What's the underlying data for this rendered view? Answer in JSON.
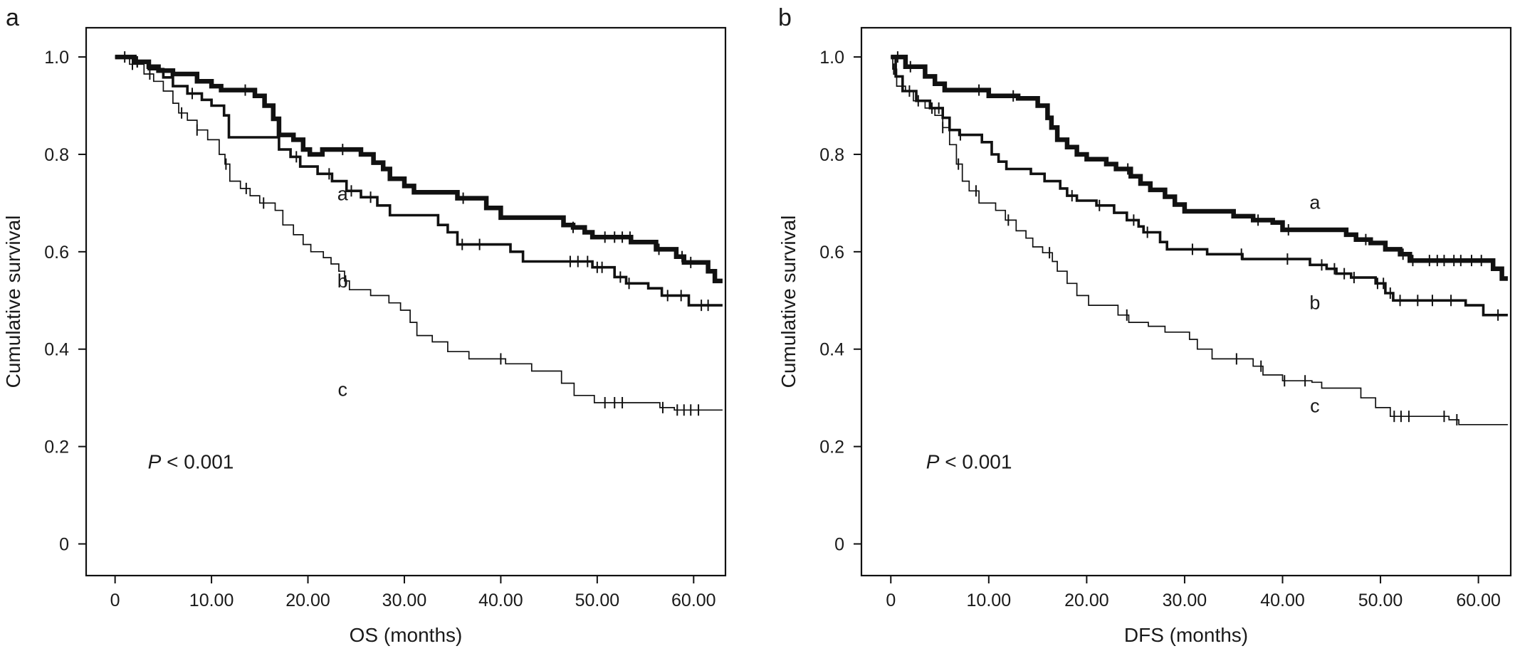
{
  "chart_data": [
    {
      "type": "line",
      "panel_label": "a",
      "xlabel": "OS (months)",
      "ylabel": "Cumulative survival",
      "xlim": [
        -3,
        63.3
      ],
      "ylim": [
        -0.065,
        1.06
      ],
      "x_ticks": [
        0,
        10,
        20,
        30,
        40,
        50,
        60
      ],
      "x_tick_labels": [
        "0",
        "10.00",
        "20.00",
        "30.00",
        "40.00",
        "50.00",
        "60.00"
      ],
      "y_ticks": [
        0,
        0.2,
        0.4,
        0.6,
        0.8,
        1.0
      ],
      "y_tick_labels": [
        "0",
        "0.2",
        "0.4",
        "0.6",
        "0.8",
        "1.0"
      ],
      "annotation": {
        "italic": "P",
        "rest": " < 0.001",
        "x": 3.4,
        "y": 0.155
      },
      "grid": false,
      "series": [
        {
          "name": "a",
          "weight": "heavy",
          "label_at": [
            23.6,
            0.706
          ],
          "steps": [
            [
              0,
              1.0
            ],
            [
              2,
              0.99
            ],
            [
              3.5,
              0.98
            ],
            [
              4.5,
              0.972
            ],
            [
              6,
              0.965
            ],
            [
              8.5,
              0.95
            ],
            [
              10,
              0.94
            ],
            [
              11,
              0.932
            ],
            [
              14.5,
              0.92
            ],
            [
              15.5,
              0.9
            ],
            [
              16.4,
              0.873
            ],
            [
              17,
              0.84
            ],
            [
              18.5,
              0.83
            ],
            [
              19.5,
              0.81
            ],
            [
              20.2,
              0.8
            ],
            [
              21.5,
              0.81
            ],
            [
              25.5,
              0.8
            ],
            [
              26.8,
              0.783
            ],
            [
              27.8,
              0.77
            ],
            [
              28.5,
              0.75
            ],
            [
              30,
              0.735
            ],
            [
              31,
              0.722
            ],
            [
              35.5,
              0.71
            ],
            [
              38.5,
              0.69
            ],
            [
              40,
              0.67
            ],
            [
              46.5,
              0.655
            ],
            [
              47.5,
              0.65
            ],
            [
              48.7,
              0.64
            ],
            [
              49.5,
              0.63
            ],
            [
              53.5,
              0.62
            ],
            [
              56.1,
              0.605
            ],
            [
              58.2,
              0.59
            ],
            [
              59,
              0.578
            ],
            [
              61.5,
              0.56
            ],
            [
              62.2,
              0.54
            ]
          ],
          "end_x": 63,
          "censor_x": [
            1,
            2.3,
            13.5,
            23.6,
            36.1,
            47.5,
            50.8,
            51.8,
            52.6,
            53.4,
            56.4,
            58.8,
            59.7
          ]
        },
        {
          "name": "b",
          "weight": "medium",
          "label_at": [
            23.6,
            0.527
          ],
          "steps": [
            [
              0,
              1.0
            ],
            [
              2,
              0.99
            ],
            [
              3.5,
              0.975
            ],
            [
              5,
              0.958
            ],
            [
              6,
              0.94
            ],
            [
              7.5,
              0.925
            ],
            [
              9,
              0.912
            ],
            [
              10,
              0.9
            ],
            [
              11.3,
              0.88
            ],
            [
              11.8,
              0.835
            ],
            [
              17,
              0.81
            ],
            [
              18.2,
              0.795
            ],
            [
              19.2,
              0.775
            ],
            [
              21,
              0.76
            ],
            [
              22.5,
              0.745
            ],
            [
              24,
              0.725
            ],
            [
              25.5,
              0.712
            ],
            [
              27.2,
              0.695
            ],
            [
              28.5,
              0.675
            ],
            [
              33.5,
              0.655
            ],
            [
              34.5,
              0.64
            ],
            [
              35.5,
              0.615
            ],
            [
              41,
              0.6
            ],
            [
              42.3,
              0.58
            ],
            [
              49.5,
              0.568
            ],
            [
              51.8,
              0.548
            ],
            [
              53,
              0.535
            ],
            [
              55.3,
              0.525
            ],
            [
              56.7,
              0.51
            ],
            [
              59.5,
              0.49
            ]
          ],
          "end_x": 63,
          "censor_x": [
            2.3,
            8,
            18.8,
            22.2,
            24.5,
            26.5,
            36,
            37.8,
            47.2,
            48,
            49,
            50,
            50.5,
            52.4,
            53.3,
            57.3,
            58.7,
            60.8,
            61.5
          ]
        },
        {
          "name": "c",
          "weight": "light",
          "label_at": [
            23.6,
            0.304
          ],
          "steps": [
            [
              0,
              1.0
            ],
            [
              1.5,
              0.985
            ],
            [
              3,
              0.965
            ],
            [
              4,
              0.95
            ],
            [
              5,
              0.93
            ],
            [
              6,
              0.905
            ],
            [
              6.6,
              0.885
            ],
            [
              7.5,
              0.87
            ],
            [
              8.5,
              0.85
            ],
            [
              9.6,
              0.83
            ],
            [
              10.8,
              0.8
            ],
            [
              11.4,
              0.78
            ],
            [
              11.9,
              0.745
            ],
            [
              13,
              0.73
            ],
            [
              14,
              0.715
            ],
            [
              15,
              0.7
            ],
            [
              16.6,
              0.685
            ],
            [
              17.4,
              0.655
            ],
            [
              18.5,
              0.635
            ],
            [
              19.5,
              0.615
            ],
            [
              20.3,
              0.6
            ],
            [
              21.6,
              0.588
            ],
            [
              22.4,
              0.575
            ],
            [
              23.2,
              0.56
            ],
            [
              23.8,
              0.54
            ],
            [
              24.3,
              0.522
            ],
            [
              26.5,
              0.51
            ],
            [
              28.4,
              0.495
            ],
            [
              29.6,
              0.48
            ],
            [
              30.6,
              0.455
            ],
            [
              31.3,
              0.428
            ],
            [
              32.9,
              0.415
            ],
            [
              34.5,
              0.395
            ],
            [
              36.7,
              0.38
            ],
            [
              40.5,
              0.37
            ],
            [
              43.2,
              0.355
            ],
            [
              46.3,
              0.33
            ],
            [
              47.6,
              0.305
            ],
            [
              49.7,
              0.29
            ],
            [
              56.5,
              0.28
            ],
            [
              58,
              0.275
            ]
          ],
          "end_x": 63,
          "censor_x": [
            1.8,
            3.6,
            6.9,
            8.5,
            11.5,
            13.6,
            15.4,
            23.9,
            40,
            50.8,
            51.8,
            52.6,
            56.8,
            58.3,
            59,
            59.7,
            60.5
          ]
        }
      ]
    },
    {
      "type": "line",
      "panel_label": "b",
      "xlabel": "DFS (months)",
      "ylabel": "Cumulative survival",
      "xlim": [
        -3,
        63.3
      ],
      "ylim": [
        -0.065,
        1.06
      ],
      "x_ticks": [
        0,
        10,
        20,
        30,
        40,
        50,
        60
      ],
      "x_tick_labels": [
        "0",
        "10.00",
        "20.00",
        "30.00",
        "40.00",
        "50.00",
        "60.00"
      ],
      "y_ticks": [
        0,
        0.2,
        0.4,
        0.6,
        0.8,
        1.0
      ],
      "y_tick_labels": [
        "0",
        "0.2",
        "0.4",
        "0.6",
        "0.8",
        "1.0"
      ],
      "annotation": {
        "italic": "P",
        "rest": " < 0.001",
        "x": 3.6,
        "y": 0.155
      },
      "grid": false,
      "series": [
        {
          "name": "a",
          "weight": "heavy",
          "label_at": [
            43.3,
            0.688
          ],
          "steps": [
            [
              0,
              1.0
            ],
            [
              1.5,
              0.98
            ],
            [
              3.5,
              0.96
            ],
            [
              4.5,
              0.945
            ],
            [
              5.5,
              0.932
            ],
            [
              10,
              0.92
            ],
            [
              13,
              0.915
            ],
            [
              15,
              0.9
            ],
            [
              16,
              0.875
            ],
            [
              16.4,
              0.855
            ],
            [
              17,
              0.83
            ],
            [
              18,
              0.815
            ],
            [
              19,
              0.8
            ],
            [
              20,
              0.79
            ],
            [
              22,
              0.78
            ],
            [
              23,
              0.77
            ],
            [
              24.5,
              0.755
            ],
            [
              25.5,
              0.74
            ],
            [
              26.5,
              0.727
            ],
            [
              28,
              0.713
            ],
            [
              29,
              0.697
            ],
            [
              30,
              0.683
            ],
            [
              35,
              0.673
            ],
            [
              37,
              0.665
            ],
            [
              39,
              0.66
            ],
            [
              40,
              0.645
            ],
            [
              46.5,
              0.635
            ],
            [
              47.5,
              0.625
            ],
            [
              49,
              0.618
            ],
            [
              50.5,
              0.605
            ],
            [
              52,
              0.595
            ],
            [
              53,
              0.582
            ],
            [
              61.5,
              0.565
            ],
            [
              62.4,
              0.545
            ]
          ],
          "end_x": 63,
          "censor_x": [
            0.7,
            2,
            9,
            12.5,
            24.2,
            37.5,
            40.6,
            48.5,
            52.3,
            53.3,
            55,
            55.8,
            56.5,
            57.5,
            58.2,
            59.3,
            60.3
          ]
        },
        {
          "name": "b",
          "weight": "medium",
          "label_at": [
            43.3,
            0.482
          ],
          "steps": [
            [
              0,
              1.0
            ],
            [
              0.5,
              0.96
            ],
            [
              1.2,
              0.93
            ],
            [
              2.6,
              0.91
            ],
            [
              4,
              0.895
            ],
            [
              5.3,
              0.875
            ],
            [
              6,
              0.85
            ],
            [
              7,
              0.84
            ],
            [
              9.3,
              0.825
            ],
            [
              10.3,
              0.8
            ],
            [
              11,
              0.785
            ],
            [
              11.8,
              0.77
            ],
            [
              14.3,
              0.76
            ],
            [
              15.7,
              0.745
            ],
            [
              17.3,
              0.73
            ],
            [
              18,
              0.715
            ],
            [
              19,
              0.705
            ],
            [
              21,
              0.695
            ],
            [
              22.8,
              0.68
            ],
            [
              24.1,
              0.665
            ],
            [
              25.3,
              0.652
            ],
            [
              25.8,
              0.64
            ],
            [
              27.5,
              0.62
            ],
            [
              28.2,
              0.605
            ],
            [
              32.3,
              0.595
            ],
            [
              35.9,
              0.585
            ],
            [
              42.8,
              0.573
            ],
            [
              44.5,
              0.565
            ],
            [
              45.5,
              0.555
            ],
            [
              47,
              0.547
            ],
            [
              49.5,
              0.535
            ],
            [
              50.5,
              0.515
            ],
            [
              51.3,
              0.5
            ],
            [
              58.7,
              0.49
            ],
            [
              60.5,
              0.47
            ]
          ],
          "end_x": 63,
          "censor_x": [
            2.8,
            4.9,
            7.1,
            18.5,
            21.3,
            24.8,
            26.2,
            30.8,
            35.8,
            40.5,
            44,
            45.3,
            46.3,
            47.3,
            49.7,
            50.3,
            51,
            52,
            53.8,
            55.3,
            57.2,
            62
          ]
        },
        {
          "name": "c",
          "weight": "light",
          "label_at": [
            43.3,
            0.27
          ],
          "steps": [
            [
              0,
              1.0
            ],
            [
              0.2,
              0.975
            ],
            [
              0.6,
              0.94
            ],
            [
              1.5,
              0.93
            ],
            [
              2.3,
              0.91
            ],
            [
              3.5,
              0.895
            ],
            [
              4.5,
              0.88
            ],
            [
              5.3,
              0.855
            ],
            [
              6,
              0.82
            ],
            [
              6.7,
              0.78
            ],
            [
              7.3,
              0.745
            ],
            [
              8,
              0.725
            ],
            [
              9,
              0.7
            ],
            [
              10.7,
              0.685
            ],
            [
              11.7,
              0.665
            ],
            [
              12.8,
              0.643
            ],
            [
              13.8,
              0.628
            ],
            [
              14.5,
              0.61
            ],
            [
              15.5,
              0.598
            ],
            [
              16.5,
              0.58
            ],
            [
              17,
              0.56
            ],
            [
              18,
              0.535
            ],
            [
              19,
              0.51
            ],
            [
              20.2,
              0.49
            ],
            [
              23.2,
              0.47
            ],
            [
              24.3,
              0.455
            ],
            [
              26.3,
              0.447
            ],
            [
              28,
              0.435
            ],
            [
              30.5,
              0.42
            ],
            [
              31.3,
              0.4
            ],
            [
              32.8,
              0.38
            ],
            [
              37,
              0.365
            ],
            [
              38,
              0.347
            ],
            [
              40,
              0.335
            ],
            [
              43,
              0.332
            ],
            [
              44,
              0.32
            ],
            [
              48,
              0.3
            ],
            [
              49.5,
              0.28
            ],
            [
              51,
              0.262
            ],
            [
              57,
              0.255
            ],
            [
              58,
              0.245
            ]
          ],
          "end_x": 63,
          "censor_x": [
            0.3,
            1.9,
            4.2,
            5.3,
            6.9,
            8.7,
            12,
            16.2,
            24.1,
            35.3,
            37.8,
            40.2,
            42.3,
            51.4,
            52.1,
            52.9,
            56.5,
            57.8
          ]
        }
      ]
    }
  ]
}
